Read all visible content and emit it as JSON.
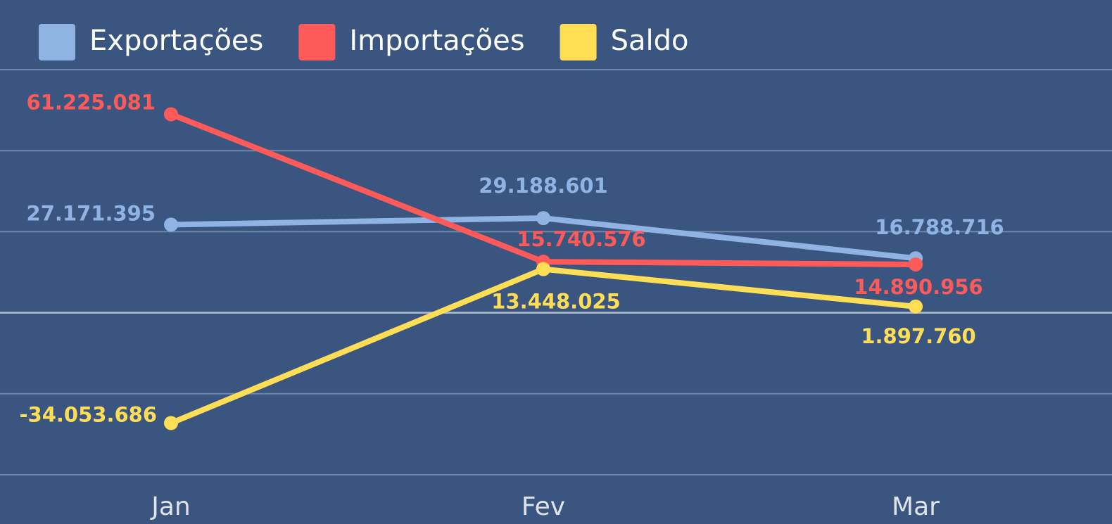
{
  "chart_data": {
    "type": "line",
    "categories": [
      "Jan",
      "Fev",
      "Mar"
    ],
    "series": [
      {
        "name": "Exportações",
        "color": "#8fb3e3",
        "values": [
          27171395,
          29188601,
          16788716
        ],
        "value_labels": [
          "27.171.395",
          "29.188.601",
          "16.788.716"
        ]
      },
      {
        "name": "Importações",
        "color": "#ff5a5a",
        "values": [
          61225081,
          15740576,
          14890956
        ],
        "value_labels": [
          "61.225.081",
          "15.740.576",
          "14.890.956"
        ]
      },
      {
        "name": "Saldo",
        "color": "#ffdd55",
        "values": [
          -34053686,
          13448025,
          1897760
        ],
        "value_labels": [
          "-34.053.686",
          "13.448.025",
          "1.897.760"
        ]
      }
    ],
    "ylim": [
      -50000000,
      75000000
    ],
    "yticks": [
      -50000000,
      -25000000,
      0,
      25000000,
      50000000,
      75000000
    ],
    "grid": true,
    "legend": "top-left"
  }
}
